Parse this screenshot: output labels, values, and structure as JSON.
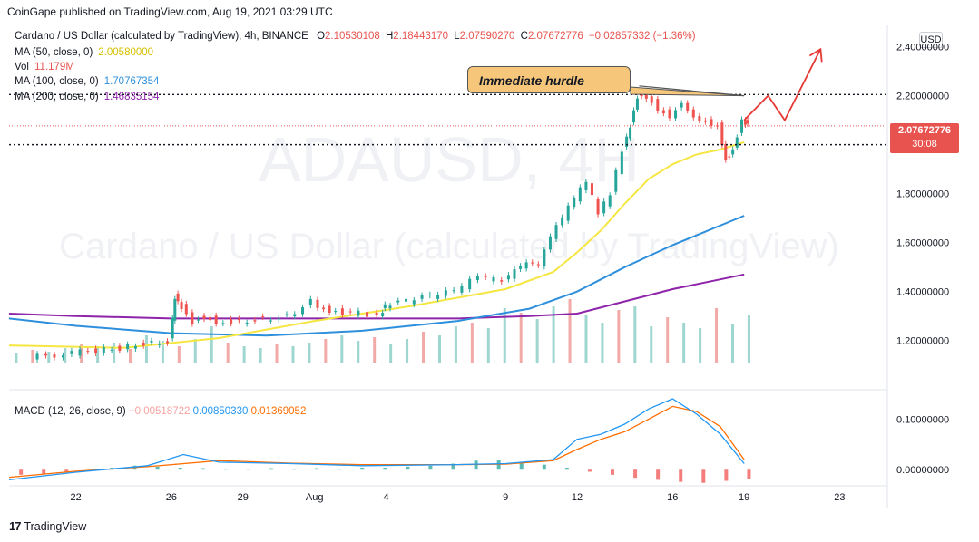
{
  "header": {
    "published": "CoinGape published on TradingView.com, Aug 19, 2021 03:29 UTC"
  },
  "legend": {
    "symbol": "Cardano / US Dollar (calculated by TradingView), 4h, BINANCE",
    "ohlc": {
      "o_label": "O",
      "o": "2.10530108",
      "h_label": "H",
      "h": "2.18443170",
      "l_label": "L",
      "l": "2.07590270",
      "c_label": "C",
      "c": "2.07672776",
      "chg": "−0.02857332 (−1.36%)"
    },
    "ma50": {
      "label": "MA (50, close, 0)",
      "value": "2.00580000"
    },
    "vol": {
      "label": "Vol",
      "value": "11.179M"
    },
    "ma100": {
      "label": "MA (100, close, 0)",
      "value": "1.70767354"
    },
    "ma200": {
      "label": "MA (200, close, 0)",
      "value": "1.46835154"
    }
  },
  "macd_legend": {
    "label": "MACD (12, 26, close, 9)",
    "hist": "−0.00518722",
    "macd": "0.00850330",
    "signal": "0.01369052"
  },
  "currency": "USD",
  "price_tag": {
    "price": "2.07672776",
    "countdown": "30:08"
  },
  "annotation": "Immediate hurdle",
  "watermark": {
    "symbol": "ADAUSD, 4H",
    "name": "Cardano / US Dollar (calculated by TradingView)"
  },
  "footer": {
    "brand": "TradingView"
  },
  "colors": {
    "up": "#26a69a",
    "down": "#ef5350",
    "ma50": "#f5e642",
    "ma100": "#2e8fdc",
    "ma200": "#8e24aa",
    "macd": "#2196f3",
    "signal": "#ff6d00"
  },
  "chart_data": {
    "type": "candlestick",
    "price_axis": {
      "ticks": [
        1.2,
        1.4,
        1.6,
        1.8,
        2.0,
        2.2,
        2.4
      ],
      "tick_labels": [
        "1.20000000",
        "1.40000000",
        "1.60000000",
        "1.80000000",
        "",
        "2.20000000",
        "2.40000000"
      ],
      "range": [
        1.11,
        2.48
      ]
    },
    "macd_axis": {
      "ticks": [
        0,
        0.1
      ],
      "tick_labels": [
        "0.00000000",
        "0.10000000"
      ],
      "range": [
        -0.03,
        0.14
      ]
    },
    "x_ticks": [
      {
        "label": "22",
        "day": 0
      },
      {
        "label": "26",
        "day": 4
      },
      {
        "label": "29",
        "day": 7
      },
      {
        "label": "Aug",
        "day": 10
      },
      {
        "label": "4",
        "day": 13
      },
      {
        "label": "9",
        "day": 18
      },
      {
        "label": "12",
        "day": 21
      },
      {
        "label": "16",
        "day": 25
      },
      {
        "label": "19",
        "day": 28
      },
      {
        "label": "23",
        "day": 32
      }
    ],
    "x_range_days": [
      -2.8,
      34.0
    ],
    "close_series": [
      [
        -1.8,
        1.13
      ],
      [
        0,
        1.15
      ],
      [
        1,
        1.16
      ],
      [
        2,
        1.17
      ],
      [
        3,
        1.19
      ],
      [
        4,
        1.2
      ],
      [
        4.2,
        1.38
      ],
      [
        4.5,
        1.34
      ],
      [
        5,
        1.28
      ],
      [
        5.5,
        1.3
      ],
      [
        6,
        1.28
      ],
      [
        7,
        1.28
      ],
      [
        8,
        1.29
      ],
      [
        9,
        1.3
      ],
      [
        10,
        1.36
      ],
      [
        10.5,
        1.33
      ],
      [
        11,
        1.32
      ],
      [
        12,
        1.31
      ],
      [
        12.8,
        1.3
      ],
      [
        13,
        1.34
      ],
      [
        14,
        1.36
      ],
      [
        15,
        1.38
      ],
      [
        16,
        1.4
      ],
      [
        17,
        1.46
      ],
      [
        18,
        1.44
      ],
      [
        18.5,
        1.48
      ],
      [
        19,
        1.51
      ],
      [
        19.5,
        1.5
      ],
      [
        20,
        1.62
      ],
      [
        20.5,
        1.7
      ],
      [
        21,
        1.78
      ],
      [
        21.5,
        1.85
      ],
      [
        22,
        1.72
      ],
      [
        22.5,
        1.8
      ],
      [
        23,
        1.98
      ],
      [
        23.3,
        2.08
      ],
      [
        23.6,
        2.2
      ],
      [
        24,
        2.2
      ],
      [
        24.5,
        2.15
      ],
      [
        25,
        2.12
      ],
      [
        25.5,
        2.18
      ],
      [
        26,
        2.12
      ],
      [
        26.5,
        2.1
      ],
      [
        27,
        2.08
      ],
      [
        27.3,
        1.94
      ],
      [
        27.6,
        1.98
      ],
      [
        28,
        2.1
      ],
      [
        28.2,
        2.08
      ]
    ],
    "ma50": [
      [
        -2.8,
        1.18
      ],
      [
        2,
        1.17
      ],
      [
        6,
        1.21
      ],
      [
        10,
        1.28
      ],
      [
        14,
        1.34
      ],
      [
        18,
        1.41
      ],
      [
        20,
        1.48
      ],
      [
        21,
        1.56
      ],
      [
        22,
        1.65
      ],
      [
        23,
        1.76
      ],
      [
        24,
        1.86
      ],
      [
        25,
        1.92
      ],
      [
        26,
        1.96
      ],
      [
        27,
        1.98
      ],
      [
        28,
        2.01
      ]
    ],
    "ma100": [
      [
        -2.8,
        1.29
      ],
      [
        0,
        1.26
      ],
      [
        4,
        1.23
      ],
      [
        8,
        1.22
      ],
      [
        12,
        1.24
      ],
      [
        16,
        1.28
      ],
      [
        19,
        1.33
      ],
      [
        21,
        1.4
      ],
      [
        23,
        1.5
      ],
      [
        25,
        1.59
      ],
      [
        28,
        1.71
      ]
    ],
    "ma200": [
      [
        -2.8,
        1.31
      ],
      [
        0,
        1.3
      ],
      [
        4,
        1.29
      ],
      [
        8,
        1.29
      ],
      [
        12,
        1.29
      ],
      [
        16,
        1.29
      ],
      [
        19,
        1.3
      ],
      [
        21,
        1.31
      ],
      [
        23,
        1.36
      ],
      [
        25,
        1.41
      ],
      [
        28,
        1.47
      ]
    ],
    "levels": [
      2.205,
      2.0
    ],
    "current_price": 2.07672776,
    "hurdle_line": [
      [
        23.6,
        2.24
      ],
      [
        28,
        2.2
      ]
    ],
    "projection": [
      [
        28,
        2.1
      ],
      [
        29,
        2.2
      ],
      [
        29.7,
        2.1
      ],
      [
        31.2,
        2.39
      ]
    ],
    "volume_heights": [
      10,
      14,
      12,
      16,
      20,
      18,
      22,
      15,
      30,
      24,
      18,
      26,
      40,
      22,
      18,
      16,
      20,
      18,
      22,
      26,
      30,
      24,
      28,
      20,
      26,
      34,
      30,
      40,
      44,
      38,
      60,
      55,
      48,
      62,
      70,
      52,
      44,
      58,
      62,
      40,
      50,
      44,
      38,
      60,
      42,
      52
    ],
    "macd_line": [
      [
        -2.8,
        -0.02
      ],
      [
        0,
        -0.005
      ],
      [
        3,
        0.008
      ],
      [
        4.5,
        0.03
      ],
      [
        6,
        0.015
      ],
      [
        9,
        0.012
      ],
      [
        12,
        0.008
      ],
      [
        16,
        0.01
      ],
      [
        18,
        0.012
      ],
      [
        20,
        0.02
      ],
      [
        21,
        0.06
      ],
      [
        22,
        0.07
      ],
      [
        23,
        0.09
      ],
      [
        24,
        0.12
      ],
      [
        25,
        0.14
      ],
      [
        26,
        0.11
      ],
      [
        27,
        0.07
      ],
      [
        28,
        0.012
      ]
    ],
    "signal_line": [
      [
        -2.8,
        -0.015
      ],
      [
        0,
        -0.003
      ],
      [
        3,
        0.006
      ],
      [
        6,
        0.018
      ],
      [
        9,
        0.013
      ],
      [
        12,
        0.01
      ],
      [
        16,
        0.01
      ],
      [
        18,
        0.011
      ],
      [
        20,
        0.018
      ],
      [
        21,
        0.04
      ],
      [
        22,
        0.06
      ],
      [
        23,
        0.075
      ],
      [
        24,
        0.1
      ],
      [
        25,
        0.125
      ],
      [
        26,
        0.115
      ],
      [
        27,
        0.085
      ],
      [
        28,
        0.02
      ]
    ],
    "macd_hist": [
      -0.01,
      -0.008,
      -0.004,
      0.002,
      0.004,
      0.008,
      0.006,
      0.004,
      0.003,
      0.002,
      0.002,
      0.003,
      0.002,
      0.003,
      0.002,
      0.004,
      0.004,
      0.006,
      0.008,
      0.012,
      0.018,
      0.02,
      0.015,
      0.01,
      0.004,
      -0.004,
      -0.01,
      -0.016,
      -0.02,
      -0.024,
      -0.026,
      -0.022,
      -0.018
    ]
  }
}
